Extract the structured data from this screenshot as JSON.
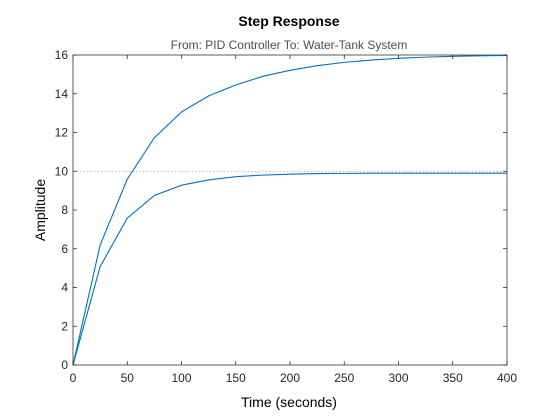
{
  "chart_data": {
    "type": "line",
    "title": "Step Response",
    "subtitle": "From: PID Controller  To: Water-Tank System",
    "xlabel": "Time (seconds)",
    "ylabel": "Amplitude",
    "xlim": [
      0,
      400
    ],
    "ylim": [
      0,
      16
    ],
    "xticks": [
      "0",
      "50",
      "100",
      "150",
      "200",
      "250",
      "300",
      "350",
      "400"
    ],
    "yticks": [
      "0",
      "2",
      "4",
      "6",
      "8",
      "10",
      "12",
      "14",
      "16"
    ],
    "grid": false,
    "legend": false,
    "reference_line": {
      "y": 10,
      "style": "dotted"
    },
    "series": [
      {
        "x": [
          0,
          25,
          50,
          75,
          100,
          125,
          150,
          175,
          200,
          225,
          250,
          275,
          300,
          325,
          350,
          375,
          400
        ],
        "values": [
          0,
          6.19,
          9.59,
          11.73,
          13.06,
          13.89,
          14.45,
          14.9,
          15.21,
          15.45,
          15.62,
          15.74,
          15.83,
          15.89,
          15.93,
          15.96,
          15.98
        ],
        "color": "#0072BD"
      },
      {
        "x": [
          0,
          25,
          50,
          75,
          100,
          125,
          150,
          175,
          200,
          225,
          250,
          275,
          300,
          325,
          350,
          375,
          400
        ],
        "values": [
          0,
          5.08,
          7.58,
          8.75,
          9.28,
          9.55,
          9.72,
          9.8,
          9.85,
          9.88,
          9.89,
          9.9,
          9.9,
          9.9,
          9.9,
          9.9,
          9.9
        ],
        "color": "#0072BD"
      }
    ]
  }
}
